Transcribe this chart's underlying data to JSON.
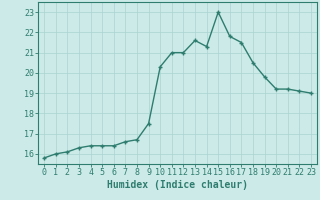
{
  "x": [
    0,
    1,
    2,
    3,
    4,
    5,
    6,
    7,
    8,
    9,
    10,
    11,
    12,
    13,
    14,
    15,
    16,
    17,
    18,
    19,
    20,
    21,
    22,
    23
  ],
  "y": [
    15.8,
    16.0,
    16.1,
    16.3,
    16.4,
    16.4,
    16.4,
    16.6,
    16.7,
    17.5,
    20.3,
    21.0,
    21.0,
    21.6,
    21.3,
    23.0,
    21.8,
    21.5,
    20.5,
    19.8,
    19.2,
    19.2,
    19.1,
    19.0
  ],
  "line_color": "#2e7d6e",
  "marker": "+",
  "marker_size": 3,
  "bg_color": "#cceae8",
  "grid_color": "#aad4d0",
  "xlabel": "Humidex (Indice chaleur)",
  "ylim": [
    15.5,
    23.5
  ],
  "xlim": [
    -0.5,
    23.5
  ],
  "yticks": [
    16,
    17,
    18,
    19,
    20,
    21,
    22,
    23
  ],
  "xticks": [
    0,
    1,
    2,
    3,
    4,
    5,
    6,
    7,
    8,
    9,
    10,
    11,
    12,
    13,
    14,
    15,
    16,
    17,
    18,
    19,
    20,
    21,
    22,
    23
  ],
  "xlabel_fontsize": 7,
  "tick_fontsize": 6,
  "line_width": 1.0,
  "spine_color": "#2e7d6e",
  "text_color": "#2e7d6e"
}
